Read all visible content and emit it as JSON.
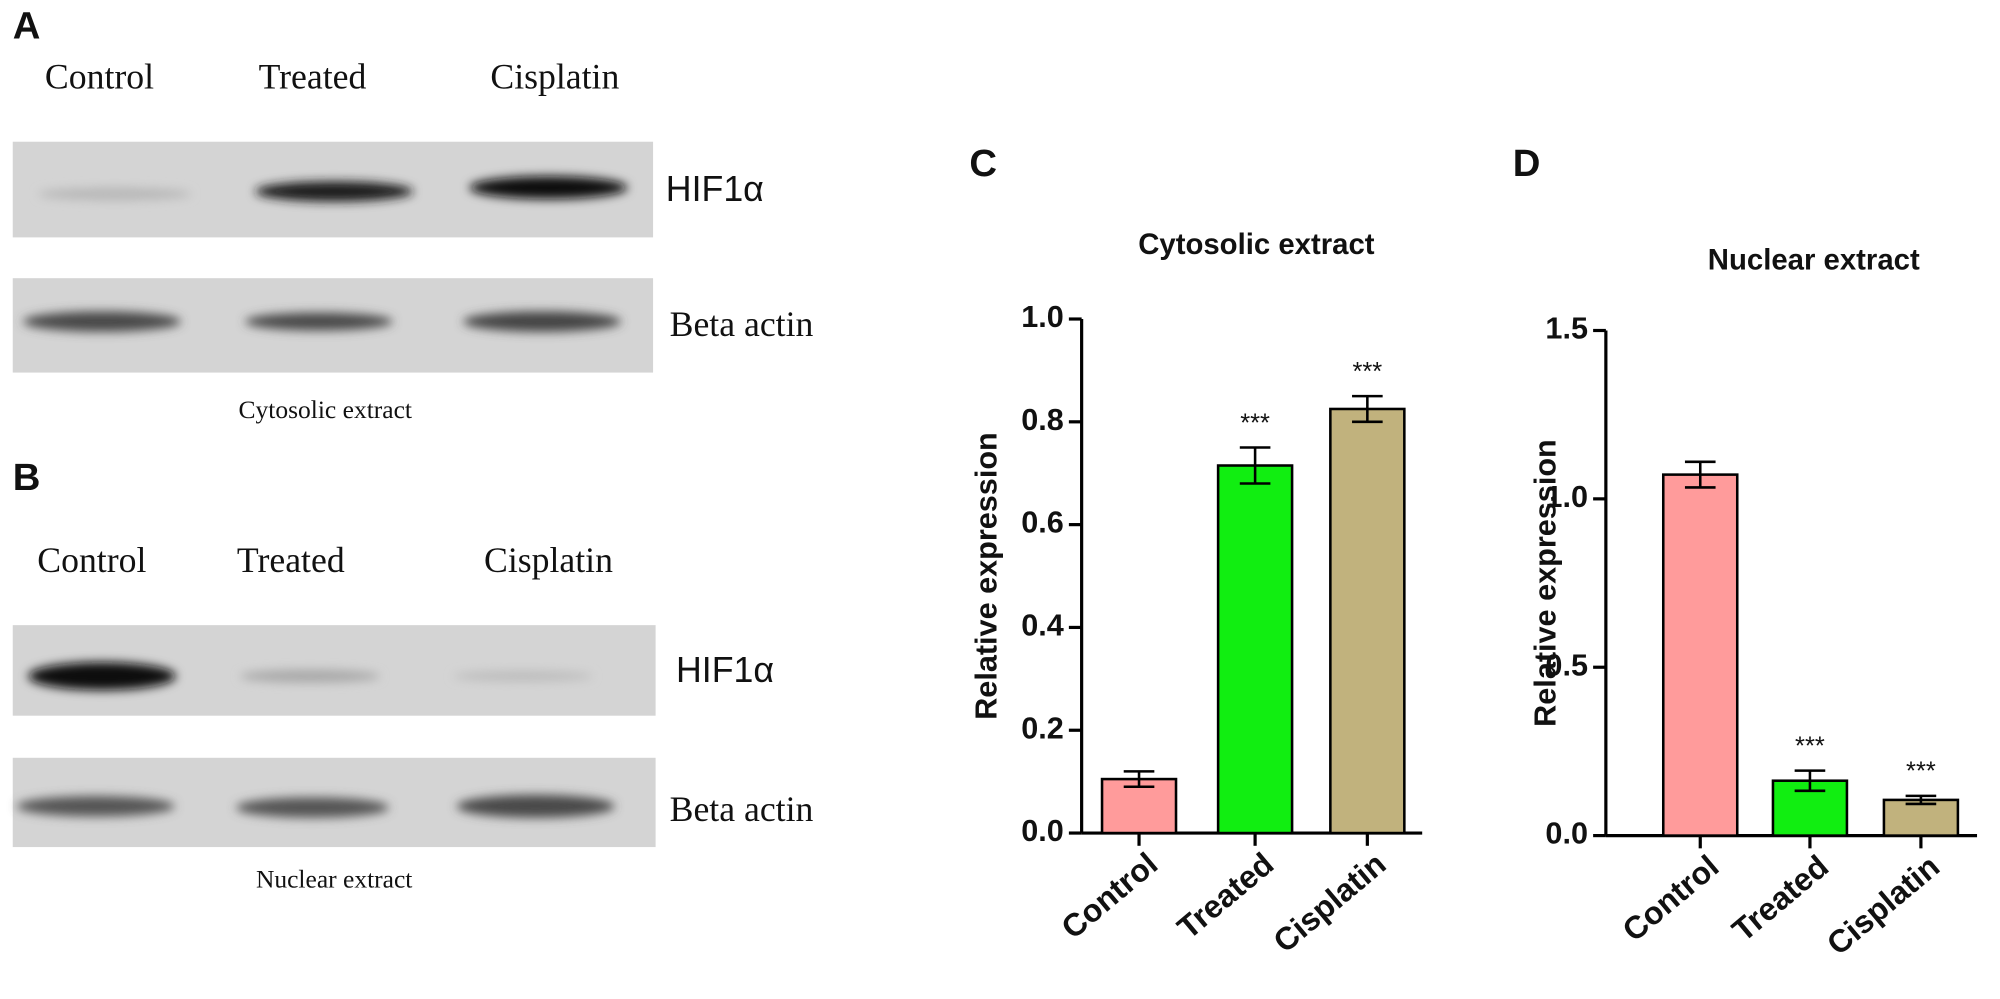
{
  "panels": {
    "a": {
      "label": "A",
      "lanes": [
        "Control",
        "Treated",
        "Cisplatin"
      ],
      "bands": [
        "HIF1α",
        "Beta actin"
      ],
      "caption": "Cytosolic extract"
    },
    "b": {
      "label": "B",
      "lanes": [
        "Control",
        "Treated",
        "Cisplatin"
      ],
      "bands": [
        "HIF1α",
        "Beta actin"
      ],
      "caption": "Nuclear extract"
    }
  },
  "chart_data": [
    {
      "type": "bar",
      "panel_label": "C",
      "title": "Cytosolic extract",
      "y_label": "Relative expression",
      "categories": [
        "Control",
        "Treated",
        "Cisplatin"
      ],
      "values": [
        0.105,
        0.715,
        0.825
      ],
      "errors": [
        0.015,
        0.035,
        0.025
      ],
      "colors": [
        "#ff9b9b",
        "#11ee11",
        "#c1b27d"
      ],
      "annotations": [
        null,
        "***",
        "***"
      ],
      "ylim": [
        0,
        1.0
      ],
      "yticks": [
        {
          "value": 0,
          "label": "0.0"
        },
        0.2,
        0.4,
        0.6,
        0.8,
        {
          "value": 1.0,
          "label": "1.0"
        }
      ]
    },
    {
      "type": "bar",
      "panel_label": "D",
      "title": "Nuclear extract",
      "y_label": "Relative expression",
      "categories": [
        "Control",
        "Treated",
        "Cisplatin"
      ],
      "values": [
        1.072,
        0.163,
        0.106
      ],
      "errors": [
        0.038,
        0.03,
        0.012
      ],
      "colors": [
        "#ff9b9b",
        "#11ee11",
        "#c1b27d"
      ],
      "annotations": [
        null,
        "***",
        "***"
      ],
      "ylim": [
        0,
        1.5
      ],
      "yticks": [
        {
          "value": 0,
          "label": "0.0"
        },
        0.5,
        {
          "value": 1.0,
          "label": "1.0"
        },
        1.5
      ]
    }
  ]
}
